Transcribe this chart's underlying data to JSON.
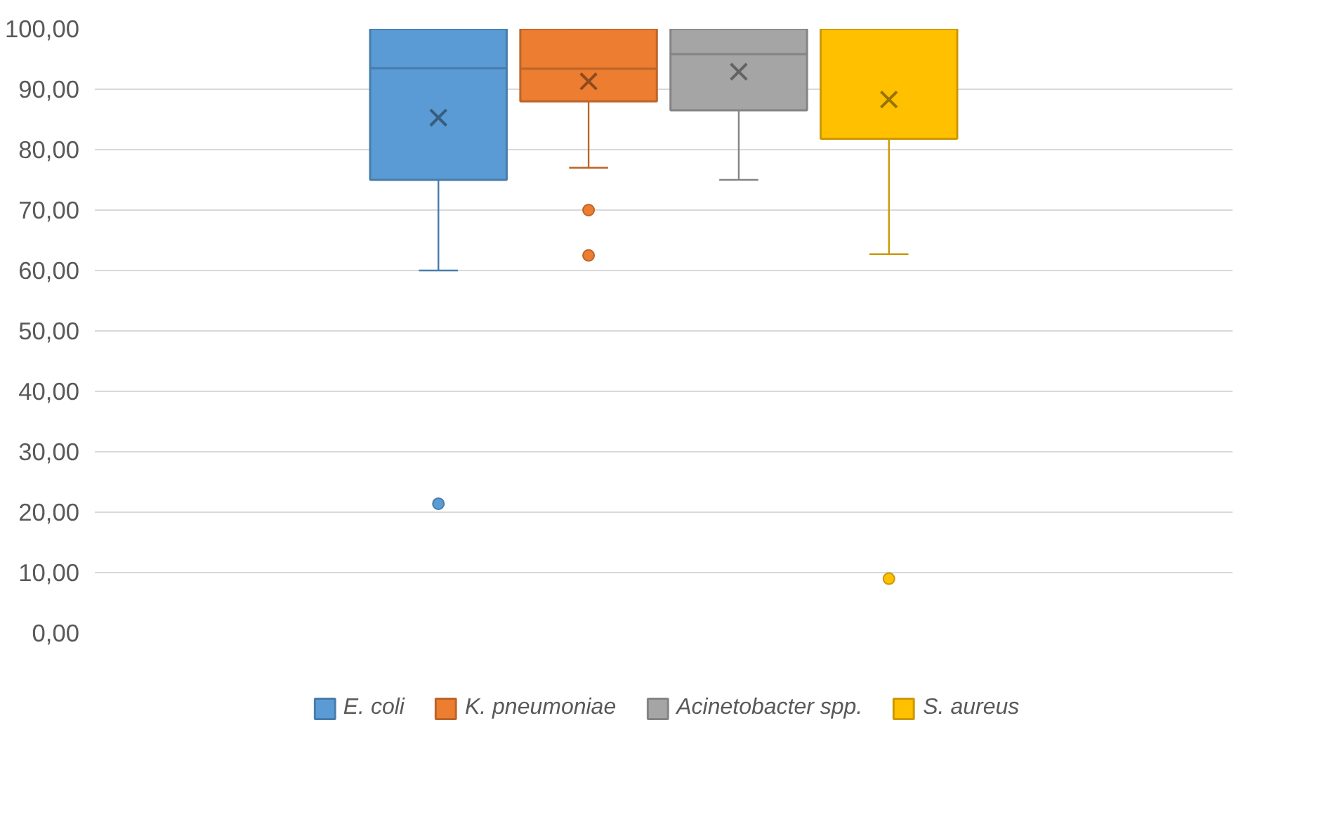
{
  "chart_data": {
    "type": "box",
    "categories": [
      null
    ],
    "series": [
      {
        "name": "E. coli",
        "color": "#5b9bd5",
        "boxes": [
          {
            "low": 60,
            "q1": 75,
            "median": 93.5,
            "q3": 100,
            "high": 100,
            "mean": 85.3,
            "outliers": [
              21.4
            ]
          }
        ]
      },
      {
        "name": "K. pneumoniae",
        "color": "#ed7d31",
        "boxes": [
          {
            "low": 77,
            "q1": 88,
            "median": 93.4,
            "q3": 100,
            "high": 100,
            "mean": 91.3,
            "outliers": [
              70,
              62.5
            ]
          }
        ]
      },
      {
        "name": "Acinetobacter spp.",
        "color": "#a5a5a5",
        "boxes": [
          {
            "low": 75,
            "q1": 86.5,
            "median": 95.8,
            "q3": 100,
            "high": 100,
            "mean": 92.9
          }
        ]
      },
      {
        "name": "S. aureus",
        "color": "#ffc000",
        "boxes": [
          {
            "low": 62.7,
            "q1": 81.8,
            "median": 100,
            "q3": 100,
            "high": 100,
            "mean": 88.3,
            "outliers": [
              9
            ]
          }
        ]
      }
    ],
    "ylim": [
      0,
      100
    ],
    "yticks": [
      {
        "value": 0,
        "label": "0,00"
      },
      {
        "value": 10,
        "label": "10,00"
      },
      {
        "value": 20,
        "label": "20,00"
      },
      {
        "value": 30,
        "label": "30,00"
      },
      {
        "value": 40,
        "label": "40,00"
      },
      {
        "value": 50,
        "label": "50,00"
      },
      {
        "value": 60,
        "label": "60,00"
      },
      {
        "value": 70,
        "label": "70,00"
      },
      {
        "value": 80,
        "label": "80,00"
      },
      {
        "value": 90,
        "label": "90,00"
      },
      {
        "value": 100,
        "label": "100,00"
      }
    ],
    "grid": "y",
    "legend": "bottom"
  }
}
